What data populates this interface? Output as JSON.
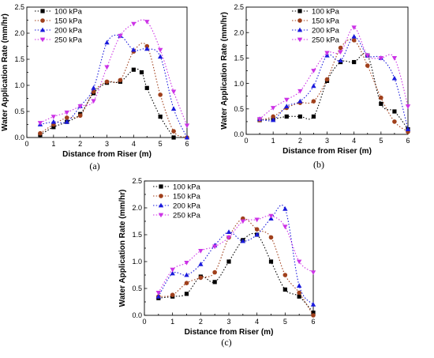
{
  "chart_data": [
    {
      "type": "line",
      "xlabel": "Distance from Riser (m)",
      "ylabel": "Water Application Rate (mm/hr)",
      "xlim": [
        0,
        6
      ],
      "ylim": [
        0,
        2.5
      ],
      "xticks": [
        0,
        1,
        2,
        3,
        4,
        5,
        6
      ],
      "yticks": [
        0.0,
        0.5,
        1.0,
        1.5,
        2.0,
        2.5
      ],
      "legend": "top-left",
      "caption": "(a)",
      "series": [
        {
          "name": "100 kPa",
          "color": "#000000",
          "marker": "square",
          "x": [
            0.5,
            1.0,
            1.5,
            2.0,
            2.5,
            3.0,
            3.5,
            4.0,
            4.3,
            4.5,
            5.0,
            5.5
          ],
          "y": [
            0.05,
            0.2,
            0.3,
            0.45,
            0.85,
            1.05,
            1.07,
            1.3,
            1.25,
            0.95,
            0.4,
            0.0
          ]
        },
        {
          "name": "150 kPa",
          "color": "#a0401c",
          "marker": "circle",
          "x": [
            0.5,
            1.0,
            1.5,
            2.0,
            2.5,
            3.0,
            3.5,
            4.0,
            4.5,
            5.0,
            5.5,
            6.0
          ],
          "y": [
            0.08,
            0.25,
            0.38,
            0.42,
            0.88,
            1.07,
            1.1,
            1.65,
            1.75,
            0.82,
            0.12,
            0.0
          ]
        },
        {
          "name": "200 kPa",
          "color": "#1a1adc",
          "marker": "triangle-up",
          "x": [
            0.5,
            1.0,
            1.5,
            2.0,
            2.5,
            3.0,
            3.5,
            4.0,
            4.5,
            5.0,
            5.5,
            6.0
          ],
          "y": [
            0.25,
            0.3,
            0.3,
            0.6,
            0.95,
            1.82,
            1.95,
            1.68,
            1.7,
            1.55,
            0.55,
            0.0
          ]
        },
        {
          "name": "250 kPa",
          "color": "#cc33e6",
          "marker": "triangle-down",
          "x": [
            0.5,
            1.0,
            1.5,
            2.0,
            2.5,
            3.0,
            3.5,
            4.0,
            4.5,
            5.0,
            5.5,
            6.0
          ],
          "y": [
            0.28,
            0.4,
            0.48,
            0.6,
            0.7,
            1.35,
            1.95,
            2.18,
            2.22,
            1.68,
            0.88,
            0.23
          ]
        }
      ]
    },
    {
      "type": "line",
      "xlabel": "Distance from Riser (m)",
      "ylabel": "Water Application Rate (mm/hr)",
      "xlim": [
        0,
        6
      ],
      "ylim": [
        0,
        2.5
      ],
      "xticks": [
        0,
        1,
        2,
        3,
        4,
        5,
        6
      ],
      "yticks": [
        0.0,
        0.5,
        1.0,
        1.5,
        2.0,
        2.5
      ],
      "legend": "top-right",
      "caption": "(b)",
      "series": [
        {
          "name": "100 kPa",
          "color": "#000000",
          "marker": "square",
          "x": [
            0.5,
            1.0,
            1.5,
            2.0,
            2.5,
            3.0,
            3.5,
            4.0,
            4.5,
            5.0,
            5.5,
            6.0
          ],
          "y": [
            0.28,
            0.3,
            0.35,
            0.35,
            0.35,
            1.05,
            1.42,
            1.42,
            1.55,
            0.6,
            0.45,
            0.1
          ]
        },
        {
          "name": "150 kPa",
          "color": "#a0401c",
          "marker": "circle",
          "x": [
            0.5,
            1.0,
            1.5,
            2.0,
            2.5,
            3.0,
            3.5,
            4.0,
            4.5,
            5.0,
            5.5,
            6.0
          ],
          "y": [
            0.28,
            0.35,
            0.52,
            0.62,
            0.65,
            1.08,
            1.7,
            1.85,
            1.35,
            0.72,
            0.25,
            0.05
          ]
        },
        {
          "name": "200 kPa",
          "color": "#1a1adc",
          "marker": "triangle-up",
          "x": [
            0.5,
            1.0,
            1.5,
            2.0,
            2.5,
            3.0,
            3.5,
            4.0,
            4.5,
            5.0,
            5.5,
            6.0
          ],
          "y": [
            0.3,
            0.28,
            0.55,
            0.65,
            0.95,
            1.55,
            1.45,
            1.92,
            1.55,
            1.5,
            1.1,
            0.1
          ]
        },
        {
          "name": "250 kPa",
          "color": "#cc33e6",
          "marker": "triangle-down",
          "x": [
            0.5,
            1.0,
            1.5,
            2.0,
            2.5,
            3.0,
            3.5,
            4.0,
            4.5,
            5.0,
            5.5,
            6.0
          ],
          "y": [
            0.3,
            0.52,
            0.68,
            0.85,
            1.25,
            1.6,
            1.62,
            2.1,
            1.55,
            1.5,
            1.5,
            0.55
          ]
        }
      ]
    },
    {
      "type": "line",
      "xlabel": "Distance from Riser (m)",
      "ylabel": "Water Application Rate (mm/hr)",
      "xlim": [
        0,
        6
      ],
      "ylim": [
        0,
        2.5
      ],
      "xticks": [
        0,
        1,
        2,
        3,
        4,
        5,
        6
      ],
      "yticks": [
        0.0,
        0.5,
        1.0,
        1.5,
        2.0,
        2.5
      ],
      "legend": "top-left",
      "caption": "(c)",
      "series": [
        {
          "name": "100 kPa",
          "color": "#000000",
          "marker": "square",
          "x": [
            0.5,
            1.0,
            1.5,
            2.0,
            2.5,
            3.0,
            3.5,
            4.0,
            4.5,
            5.0,
            5.5,
            6.0
          ],
          "y": [
            0.32,
            0.35,
            0.4,
            0.72,
            0.62,
            1.0,
            1.4,
            1.5,
            1.0,
            0.48,
            0.35,
            0.05
          ]
        },
        {
          "name": "150 kPa",
          "color": "#a0401c",
          "marker": "circle",
          "x": [
            0.5,
            1.0,
            1.5,
            2.0,
            2.5,
            3.0,
            3.5,
            4.0,
            4.5,
            5.0,
            5.5,
            6.0
          ],
          "y": [
            0.35,
            0.38,
            0.6,
            0.7,
            0.8,
            1.45,
            1.8,
            1.6,
            1.45,
            0.75,
            0.42,
            0.0
          ]
        },
        {
          "name": "200 kPa",
          "color": "#1a1adc",
          "marker": "triangle-up",
          "x": [
            0.5,
            1.0,
            1.5,
            2.0,
            2.5,
            3.0,
            3.5,
            4.0,
            4.5,
            5.0,
            5.5,
            6.0
          ],
          "y": [
            0.35,
            0.78,
            0.75,
            0.95,
            1.3,
            1.55,
            1.38,
            1.5,
            1.8,
            1.98,
            0.55,
            0.2
          ]
        },
        {
          "name": "250 kPa",
          "color": "#cc33e6",
          "marker": "triangle-down",
          "x": [
            0.5,
            1.0,
            1.5,
            2.0,
            2.5,
            3.0,
            3.5,
            4.0,
            4.5,
            5.0,
            5.5,
            6.0
          ],
          "y": [
            0.42,
            0.85,
            0.98,
            1.2,
            1.28,
            1.45,
            1.75,
            1.78,
            1.85,
            1.65,
            1.0,
            0.8
          ]
        }
      ]
    }
  ]
}
